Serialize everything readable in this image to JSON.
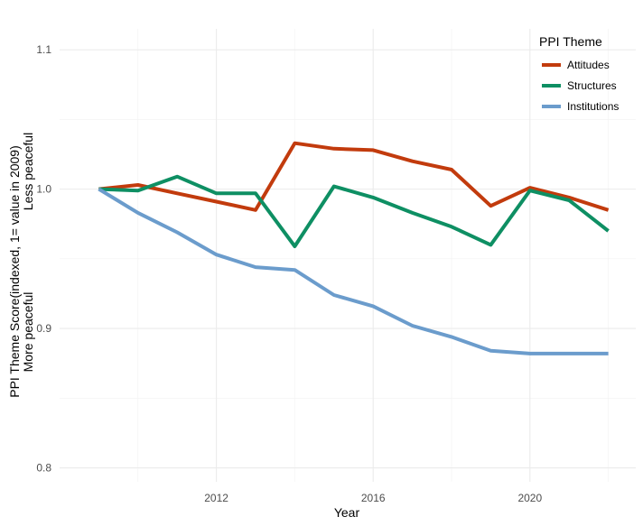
{
  "chart_data": {
    "type": "line",
    "xlabel": "Year",
    "ylabel_line1": "PPI Theme Score(indexed, 1= value in 2009)",
    "ylabel_line2_top": "Less peaceful",
    "ylabel_line2_bottom": "More peaceful",
    "xlim": [
      2008.0,
      2022.7
    ],
    "ylim": [
      0.79,
      1.115
    ],
    "x_ticks": [
      2012,
      2016,
      2020
    ],
    "x_tick_labels": [
      "2012",
      "2016",
      "2020"
    ],
    "y_ticks": [
      0.8,
      0.9,
      1.0,
      1.1
    ],
    "y_tick_labels": [
      "0.8",
      "0.9",
      "1.0",
      "1.1"
    ],
    "grid": true,
    "legend_title": "PPI Theme",
    "legend_position": "top-right",
    "x": [
      2009,
      2010,
      2011,
      2012,
      2013,
      2014,
      2015,
      2016,
      2017,
      2018,
      2019,
      2020,
      2021,
      2022
    ],
    "series": [
      {
        "name": "Attitudes",
        "color": "#c23b0d",
        "values": [
          1.0,
          1.003,
          0.997,
          0.991,
          0.985,
          1.033,
          1.029,
          1.028,
          1.02,
          1.014,
          0.988,
          1.001,
          0.994,
          0.985
        ]
      },
      {
        "name": "Structures",
        "color": "#0e8f63",
        "values": [
          1.0,
          0.999,
          1.009,
          0.997,
          0.997,
          0.959,
          1.002,
          0.994,
          0.983,
          0.973,
          0.96,
          0.999,
          0.992,
          0.97
        ]
      },
      {
        "name": "Institutions",
        "color": "#6b9ccc",
        "values": [
          1.0,
          0.983,
          0.969,
          0.953,
          0.944,
          0.942,
          0.924,
          0.916,
          0.902,
          0.894,
          0.884,
          0.882,
          0.882,
          0.882
        ]
      }
    ]
  }
}
